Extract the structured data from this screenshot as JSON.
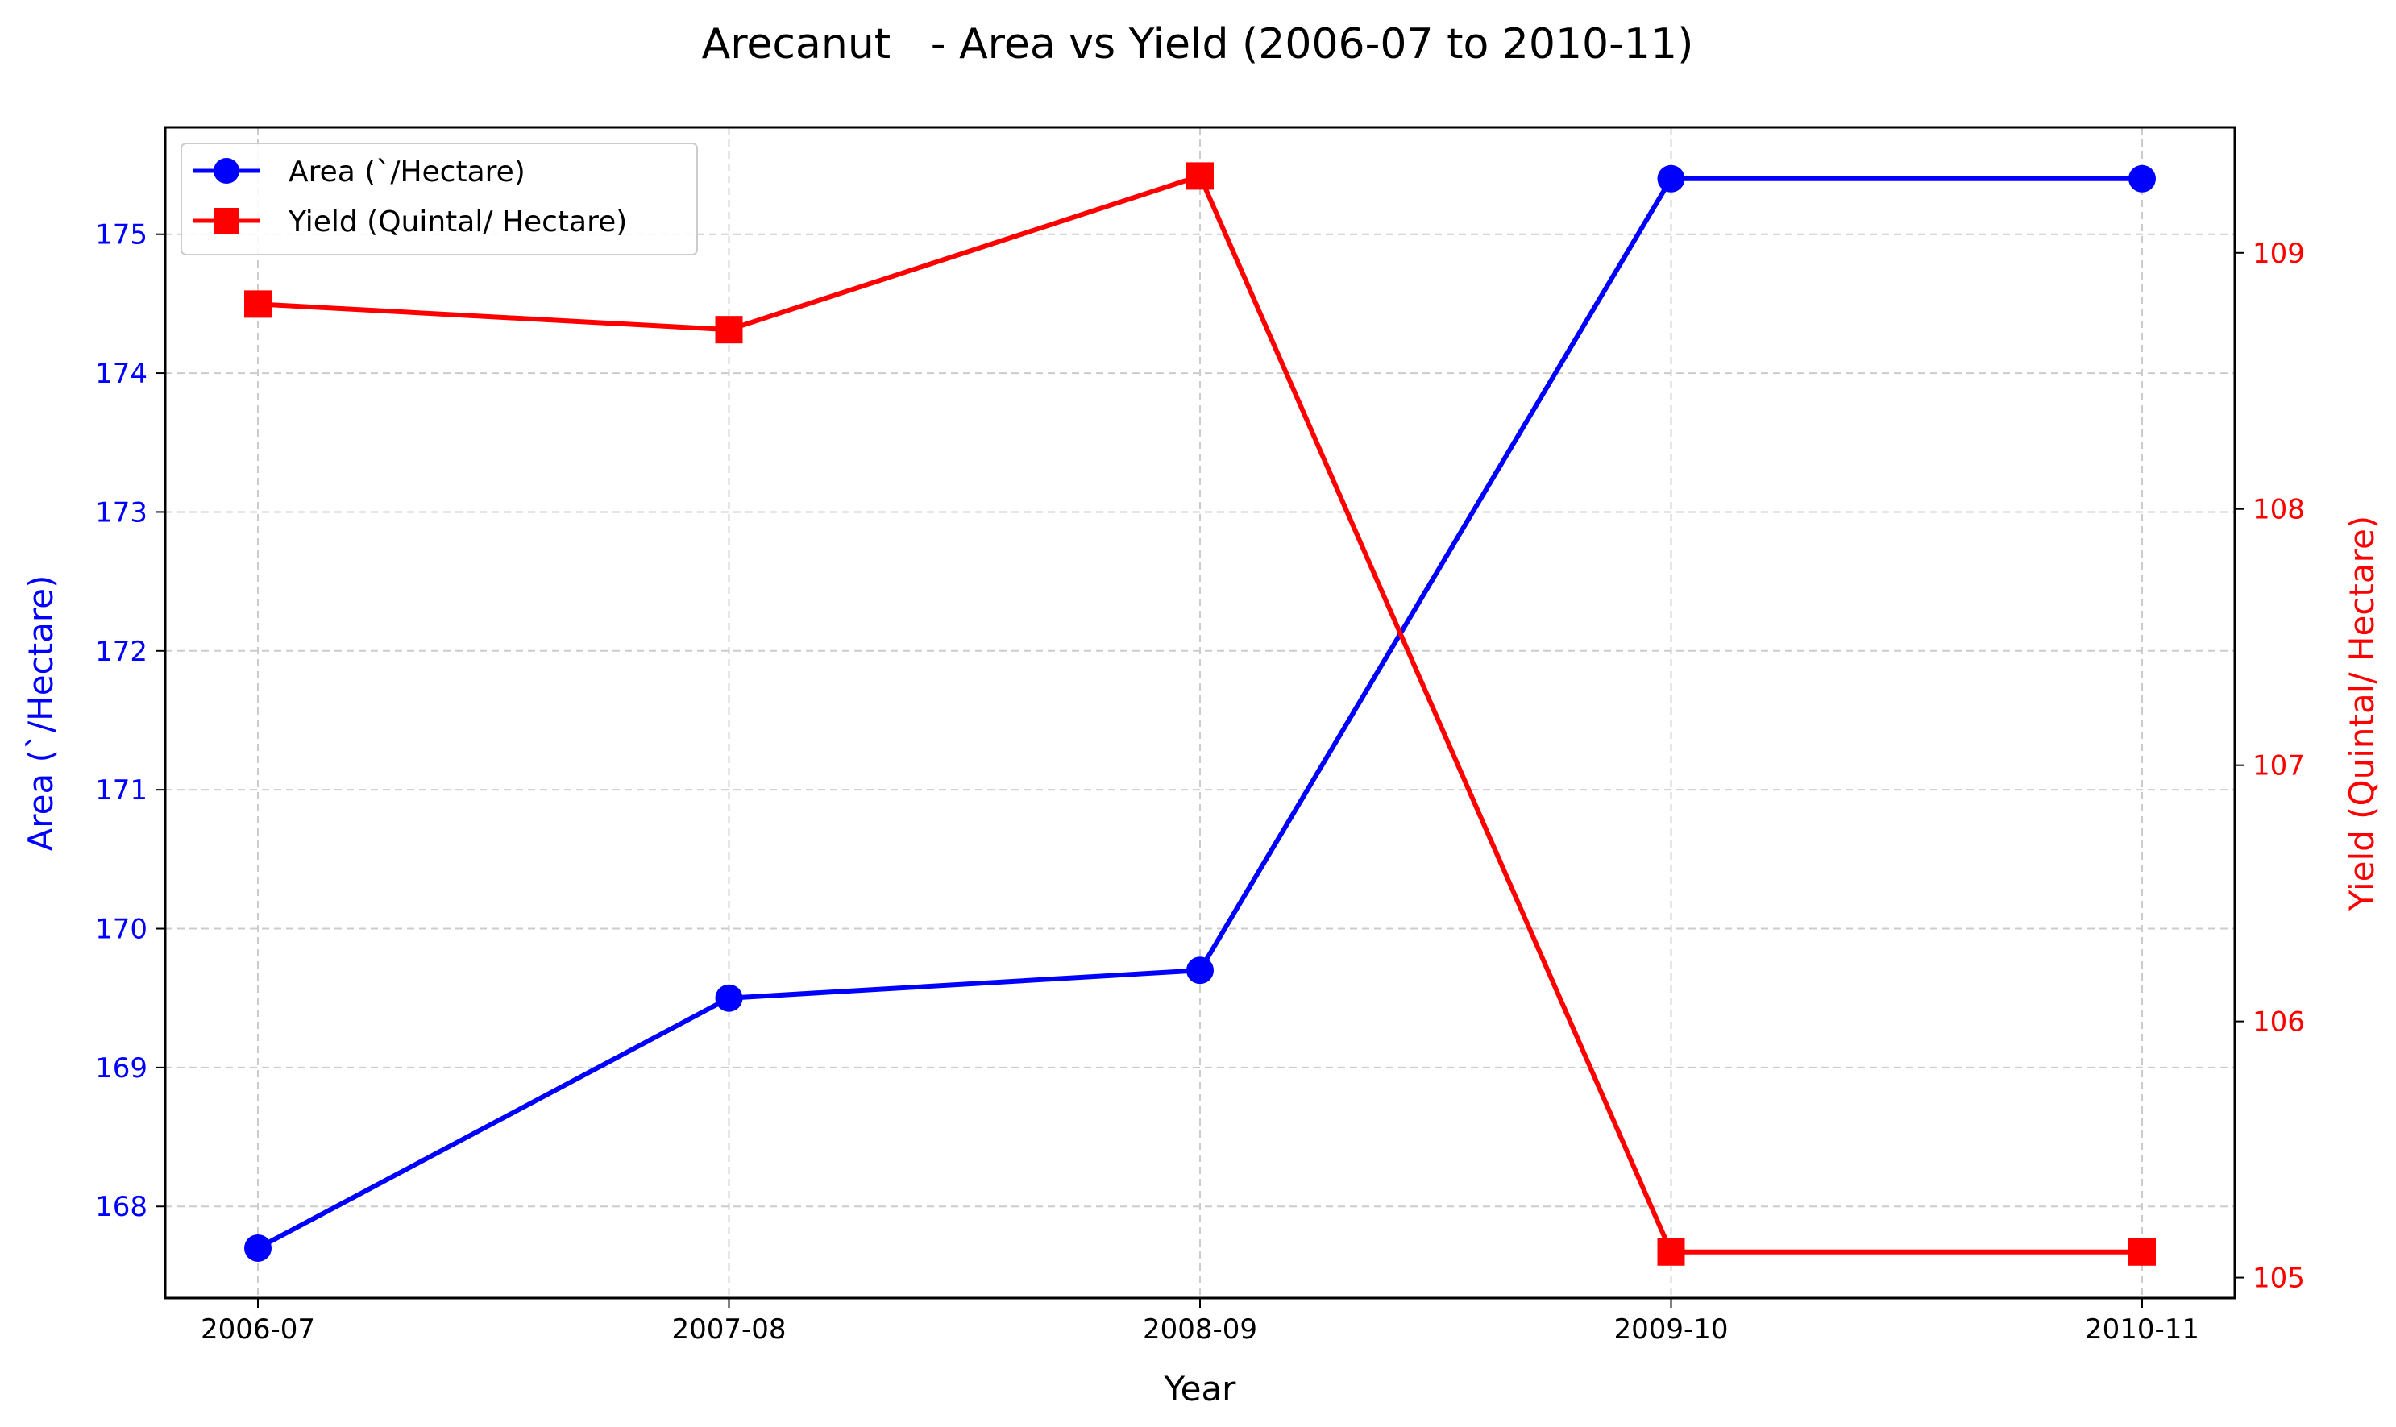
{
  "chart_data": {
    "type": "line",
    "title": "Arecanut   - Area vs Yield (2006-07 to 2010-11)",
    "xlabel": "Year",
    "ylabel_left": "Area (`/Hectare)",
    "ylabel_right": "Yield (Quintal/ Hectare)",
    "categories": [
      "2006-07",
      "2007-08",
      "2008-09",
      "2009-10",
      "2010-11"
    ],
    "series": [
      {
        "name": "Area (`/Hectare)",
        "axis": "left",
        "color": "#0000ff",
        "marker": "circle",
        "values": [
          167.7,
          169.5,
          169.7,
          175.4,
          175.4
        ]
      },
      {
        "name": "Yield (Quintal/ Hectare)",
        "axis": "right",
        "color": "#ff0000",
        "marker": "square",
        "values": [
          108.8,
          108.7,
          109.3,
          105.1,
          105.1
        ]
      }
    ],
    "ylim_left": [
      167.34,
      175.77
    ],
    "yticks_left": [
      168,
      169,
      170,
      171,
      172,
      173,
      174,
      175
    ],
    "ylim_right": [
      104.92,
      109.49
    ],
    "yticks_right": [
      105,
      106,
      107,
      108,
      109
    ],
    "grid": true,
    "legend_position": "upper-left",
    "left_axis_color": "#0000ff",
    "right_axis_color": "#ff0000"
  }
}
